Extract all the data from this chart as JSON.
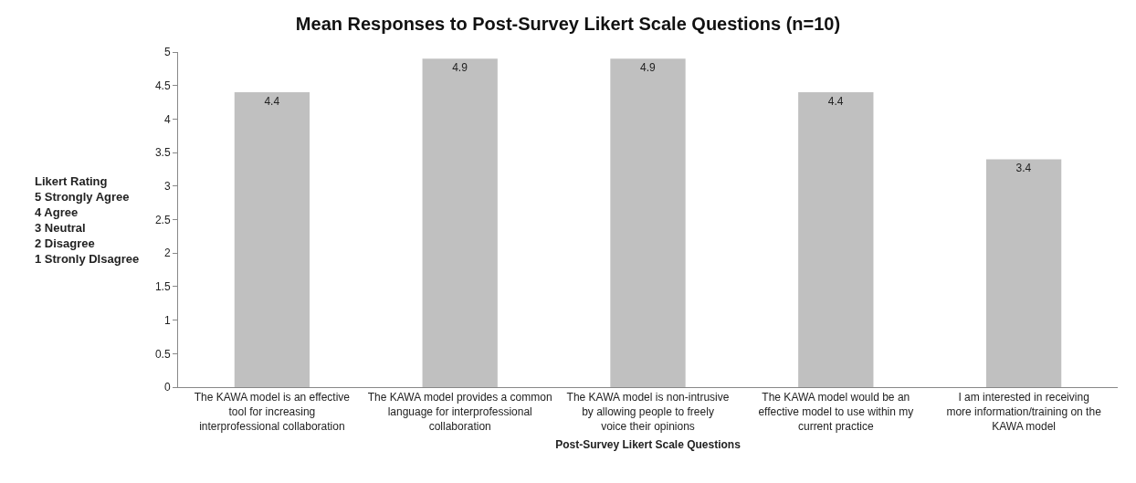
{
  "chart_data": {
    "type": "bar",
    "title": "Mean Responses to Post-Survey Likert Scale Questions (n=10)",
    "xlabel": "Post-Survey Likert Scale Questions",
    "ylabel": "Likert Rating\n5 Strongly Agree\n4 Agree\n3 Neutral\n2 Disagree\n1 Stronly DIsagree",
    "categories": [
      "The KAWA model is an effective tool for increasing interprofessional collaboration",
      "The KAWA model provides a common language for interprofessional collaboration",
      "The KAWA model is non-intrusive by allowing people to freely voice their opinions",
      "The KAWA model would be an effective model to use within my current practice",
      "I am interested in receiving more information/training on the KAWA model"
    ],
    "values": [
      4.4,
      4.9,
      4.9,
      4.4,
      3.4
    ],
    "color": "#c0c0c0",
    "ylim": [
      0,
      5
    ],
    "yticks": [
      0,
      0.5,
      1,
      1.5,
      2,
      2.5,
      3,
      3.5,
      4,
      4.5,
      5
    ],
    "legend": false,
    "data_labels": true
  }
}
